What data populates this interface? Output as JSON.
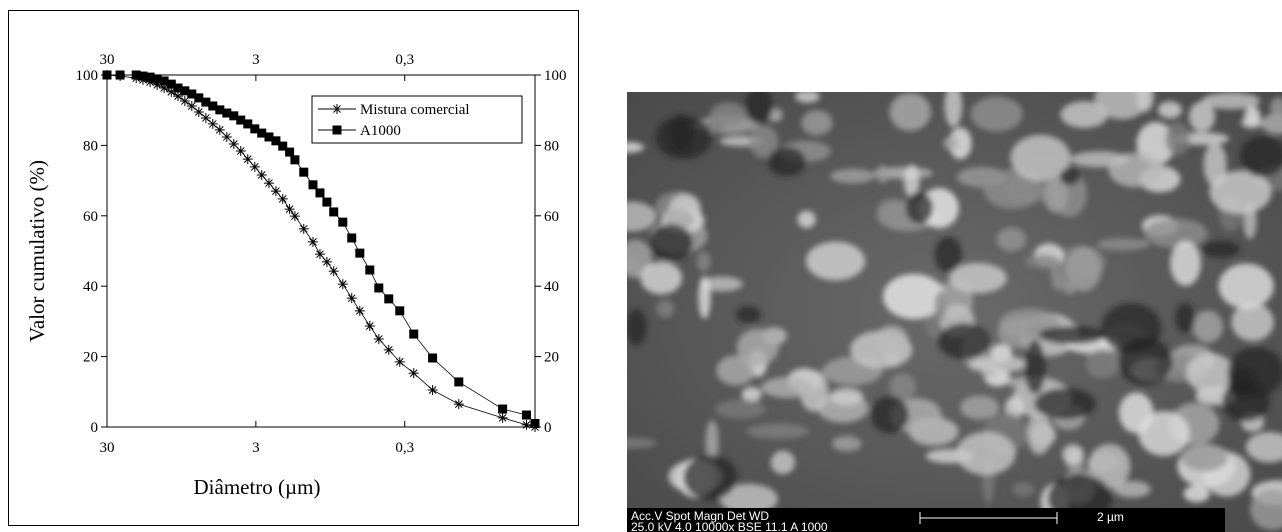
{
  "chart_data": {
    "type": "line",
    "xlabel": "Diâmetro (µm)",
    "ylabel": "Valor cumulativo (%)",
    "xscale": "log",
    "xlim": [
      30,
      0.04
    ],
    "xticks": [
      30,
      3,
      {
        "value": 0.3,
        "label": "0,3"
      }
    ],
    "ylim": [
      0,
      100
    ],
    "yticks": [
      0,
      20,
      40,
      60,
      80,
      100
    ],
    "y2lim": [
      0,
      100
    ],
    "y2ticks": [
      0,
      20,
      40,
      60,
      80,
      100
    ],
    "legend": "upper right",
    "series": [
      {
        "name": "Mistura comercial",
        "color": "#000000",
        "marker": "asterisk",
        "x": [
          30,
          24.5,
          19.1,
          17.2,
          15.4,
          13.8,
          12.4,
          11.1,
          10.0,
          9.0,
          8.08,
          7.25,
          6.5,
          5.84,
          5.24,
          4.7,
          4.22,
          3.79,
          3.4,
          3.05,
          2.74,
          2.45,
          2.2,
          1.98,
          1.78,
          1.64,
          1.43,
          1.24,
          1.113,
          1.0,
          0.9,
          0.782,
          0.681,
          0.601,
          0.515,
          0.448,
          0.384,
          0.324,
          0.261,
          0.195,
          0.13,
          0.066,
          0.0456,
          0.04
        ],
        "values": [
          100,
          99.7,
          99.1,
          98.6,
          98,
          97.2,
          96.3,
          95.2,
          94,
          92.6,
          91.2,
          89.5,
          87.8,
          86.1,
          84.4,
          82.4,
          80.4,
          78.4,
          76.1,
          73.9,
          71.6,
          69.3,
          67,
          64.8,
          61.9,
          59.9,
          56.3,
          52.6,
          49.1,
          46.9,
          44.3,
          40.6,
          36.6,
          33,
          28.7,
          25,
          21.9,
          18.5,
          15.3,
          10.5,
          6.5,
          2.6,
          0.6,
          0
        ]
      },
      {
        "name": "A1000",
        "color": "#000000",
        "marker": "square",
        "x": [
          30,
          24.5,
          19.1,
          17.2,
          15.4,
          13.8,
          12.4,
          11.1,
          10.0,
          9.0,
          8.08,
          7.25,
          6.5,
          5.84,
          5.24,
          4.7,
          4.22,
          3.79,
          3.4,
          3.05,
          2.74,
          2.45,
          2.2,
          1.98,
          1.78,
          1.64,
          1.43,
          1.24,
          1.113,
          1.0,
          0.9,
          0.782,
          0.681,
          0.601,
          0.515,
          0.448,
          0.384,
          0.324,
          0.261,
          0.195,
          0.13,
          0.066,
          0.0456,
          0.04
        ],
        "values": [
          100,
          100,
          100,
          99.7,
          99.4,
          98.9,
          98.3,
          97.4,
          96.3,
          95.5,
          94.6,
          93.5,
          92.3,
          91.2,
          90.1,
          89.2,
          88.4,
          87.2,
          86.1,
          84.7,
          83.5,
          82.4,
          81.3,
          79.8,
          78.1,
          75.9,
          72.4,
          68.8,
          66.5,
          63.9,
          61.1,
          58.2,
          53.7,
          49.4,
          44.6,
          39.5,
          36.4,
          33,
          26.4,
          19.6,
          12.8,
          5.1,
          3.4,
          1
        ]
      }
    ]
  },
  "micrograph": {
    "info_header": "Acc.V   Spot  Magn      Det   WD",
    "info_values": "25.0 kV 4.0    10000x   BSE  11.1   A 1000",
    "scale_label": "2 µm"
  }
}
